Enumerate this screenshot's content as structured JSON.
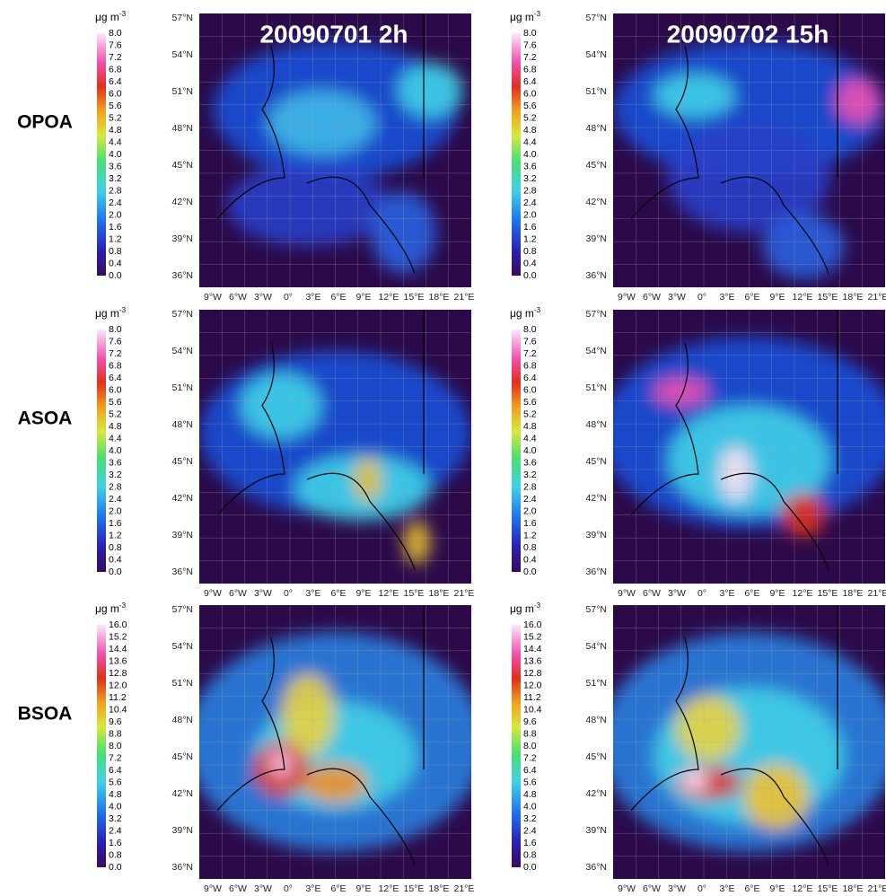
{
  "column_titles": [
    "20090701 2h",
    "20090702 15h"
  ],
  "unit": "μg m",
  "unit_exponent": "-3",
  "rows": [
    {
      "label": "OPOA",
      "colorbar_ticks": [
        "0.0",
        "0.4",
        "0.8",
        "1.2",
        "1.6",
        "2.0",
        "2.4",
        "2.8",
        "3.2",
        "3.6",
        "4.0",
        "4.4",
        "4.8",
        "5.2",
        "5.6",
        "6.0",
        "6.4",
        "6.8",
        "7.2",
        "7.6",
        "8.0"
      ]
    },
    {
      "label": "ASOA",
      "colorbar_ticks": [
        "0.0",
        "0.4",
        "0.8",
        "1.2",
        "1.6",
        "2.0",
        "2.4",
        "2.8",
        "3.2",
        "3.6",
        "4.0",
        "4.4",
        "4.8",
        "5.2",
        "5.6",
        "6.0",
        "6.4",
        "6.8",
        "7.2",
        "7.6",
        "8.0"
      ]
    },
    {
      "label": "BSOA",
      "colorbar_ticks": [
        "0.0",
        "0.8",
        "1.6",
        "2.4",
        "3.2",
        "4.0",
        "4.8",
        "5.6",
        "6.4",
        "7.2",
        "8.0",
        "8.8",
        "9.6",
        "10.4",
        "11.2",
        "12.0",
        "12.8",
        "13.6",
        "14.4",
        "15.2",
        "16.0"
      ]
    }
  ],
  "lat_labels": [
    "57°N",
    "54°N",
    "51°N",
    "48°N",
    "45°N",
    "42°N",
    "39°N",
    "36°N"
  ],
  "lon_labels": [
    "9°W",
    "6°W",
    "3°W",
    "0°",
    "3°E",
    "6°E",
    "9°E",
    "12°E",
    "15°E",
    "18°E",
    "21°E"
  ]
}
